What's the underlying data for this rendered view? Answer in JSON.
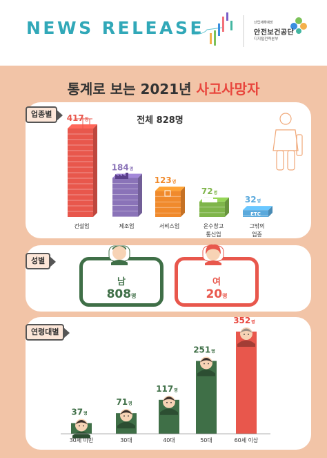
{
  "header": {
    "news_release": "NEWS RELEASE",
    "org_small": "산업재해예방",
    "org_name": "안전보건공단",
    "org_sub": "디지털전략본부"
  },
  "title": {
    "prefix": "통계로 보는 2021년 ",
    "highlight": "사고사망자"
  },
  "industry": {
    "tag": "업종별",
    "total_label": "전체 828명",
    "unit": "명"
  },
  "gender": {
    "tag": "성별",
    "male_label": "남",
    "male_value": "808",
    "female_label": "여",
    "female_value": "20",
    "unit": "명"
  },
  "age": {
    "tag": "연령대별",
    "unit": "명"
  },
  "colors": {
    "red": "#e8574c",
    "purple": "#8a73b8",
    "orange": "#f08a2c",
    "green": "#7fb54a",
    "blue": "#5aa9dc",
    "dark_green": "#3f6f47",
    "accent_red": "#e8453c",
    "teal": "#31a8b8"
  },
  "chart_data": [
    {
      "type": "bar",
      "title": "업종별",
      "categories": [
        "건설업",
        "제조업",
        "서비스업",
        "운수창고 통신업",
        "그밖의 업종"
      ],
      "values": [
        417,
        184,
        123,
        72,
        32
      ],
      "value_labels": [
        "417",
        "184",
        "123",
        "72",
        "32"
      ],
      "colors": [
        "#e8574c",
        "#8a73b8",
        "#f08a2c",
        "#7fb54a",
        "#5aa9dc"
      ],
      "annotation": "전체 828명",
      "etc_label": "ETC"
    },
    {
      "type": "bar",
      "title": "연령대별",
      "categories": [
        "30세 미만",
        "30대",
        "40대",
        "50대",
        "60세 이상"
      ],
      "values": [
        37,
        71,
        117,
        251,
        352
      ],
      "value_labels": [
        "37",
        "71",
        "117",
        "251",
        "352"
      ],
      "colors": [
        "#3f6f47",
        "#3f6f47",
        "#3f6f47",
        "#3f6f47",
        "#e8574c"
      ]
    }
  ]
}
